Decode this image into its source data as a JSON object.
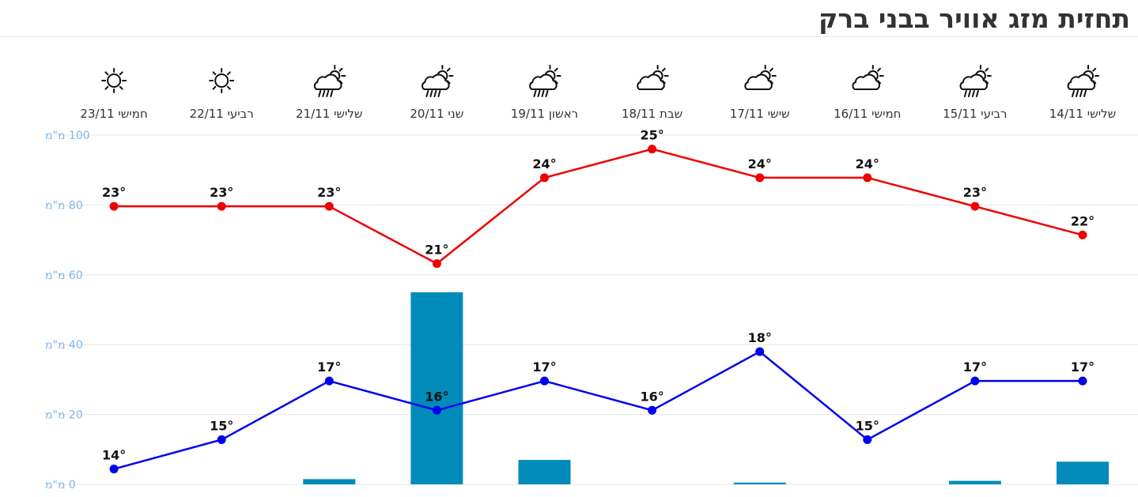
{
  "page": {
    "title": "תחזית מזג אוויר בבני ברק"
  },
  "chart_data": {
    "type": "line",
    "title": "תחזית מזג אוויר בבני ברק",
    "categories": [
      "שלישי 14/11",
      "רביעי 15/11",
      "חמישי 16/11",
      "שישי 17/11",
      "שבת 18/11",
      "ראשון 19/11",
      "שני 20/11",
      "שלישי 21/11",
      "רביעי 22/11",
      "חמישי 23/11"
    ],
    "icons": [
      "cloud-sun-rain-icon",
      "cloud-sun-rain-icon",
      "cloud-sun-icon",
      "cloud-sun-icon",
      "cloud-sun-icon",
      "cloud-sun-rain-icon",
      "cloud-sun-rain-icon",
      "cloud-sun-rain-icon",
      "sun-icon",
      "sun-icon"
    ],
    "y_axis": {
      "ticks": [
        0,
        20,
        40,
        60,
        80,
        100
      ],
      "tick_labels": [
        "0 מ\"מ",
        "20 מ\"מ",
        "40 מ\"מ",
        "60 מ\"מ",
        "80 מ\"מ",
        "100 מ\"מ"
      ],
      "range": [
        0,
        100
      ],
      "grid": true
    },
    "series": [
      {
        "values": [
          22,
          23,
          24,
          24,
          25,
          24,
          21,
          23,
          23,
          23
        ],
        "labels": [
          "22°",
          "23°",
          "24°",
          "24°",
          "25°",
          "24°",
          "21°",
          "23°",
          "23°",
          "23°"
        ],
        "color": "#ee0000"
      },
      {
        "values": [
          17,
          17,
          15,
          18,
          16,
          17,
          16,
          17,
          15,
          14
        ],
        "labels": [
          "17°",
          "17°",
          "15°",
          "18°",
          "16°",
          "17°",
          "16°",
          "17°",
          "15°",
          "14°"
        ],
        "color": "#0000ee"
      },
      {
        "type": "bar",
        "values": [
          6.5,
          1,
          0,
          0.5,
          0,
          7,
          55,
          1.5,
          0,
          0
        ],
        "color": "#008bba"
      }
    ]
  }
}
